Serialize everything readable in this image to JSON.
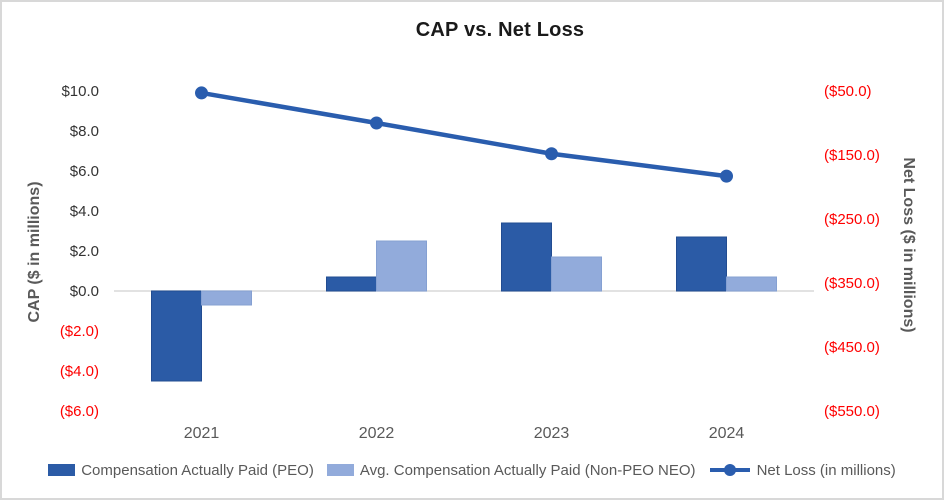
{
  "title": "CAP vs. Net Loss",
  "colors": {
    "peo_bar": "#2B5BA6",
    "peo_bar_edge": "#224C91",
    "neo_bar": "#92ABDB",
    "neo_bar_edge": "#85A0D2",
    "net_loss_line": "#2A5DAE",
    "negative_label": "#FF0000",
    "positive_label": "#333333",
    "axis_text": "#595959",
    "axis_line": "#D9D9D9",
    "title_text": "#1A1A1A"
  },
  "left_axis": {
    "title": "CAP ($ in millions)",
    "ticks": [
      {
        "value": 10,
        "label": "$10.0"
      },
      {
        "value": 8,
        "label": "$8.0"
      },
      {
        "value": 6,
        "label": "$6.0"
      },
      {
        "value": 4,
        "label": "$4.0"
      },
      {
        "value": 2,
        "label": "$2.0"
      },
      {
        "value": 0,
        "label": "$0.0"
      },
      {
        "value": -2,
        "label": "($2.0)"
      },
      {
        "value": -4,
        "label": "($4.0)"
      },
      {
        "value": -6,
        "label": "($6.0)"
      }
    ]
  },
  "right_axis": {
    "title": "Net Loss ($ in millions)",
    "ticks": [
      {
        "value": -50,
        "label": "($50.0)"
      },
      {
        "value": -150,
        "label": "($150.0)"
      },
      {
        "value": -250,
        "label": "($250.0)"
      },
      {
        "value": -350,
        "label": "($350.0)"
      },
      {
        "value": -450,
        "label": "($450.0)"
      },
      {
        "value": -550,
        "label": "($550.0)"
      }
    ]
  },
  "legend": [
    {
      "label": "Compensation Actually Paid (PEO)",
      "type": "swatch",
      "color_key": "peo_bar"
    },
    {
      "label": "Avg. Compensation Actually Paid (Non-PEO NEO)",
      "type": "swatch",
      "color_key": "neo_bar"
    },
    {
      "label": "Net Loss (in millions)",
      "type": "line-marker",
      "color_key": "net_loss_line"
    }
  ],
  "chart_data": {
    "type": "combo",
    "title": "CAP vs. Net Loss",
    "categories": [
      "2021",
      "2022",
      "2023",
      "2024"
    ],
    "series": [
      {
        "name": "Compensation Actually Paid (PEO)",
        "type": "bar",
        "axis": "left",
        "values": [
          -4.5,
          0.7,
          3.4,
          2.7
        ]
      },
      {
        "name": "Avg. Compensation Actually Paid (Non-PEO NEO)",
        "type": "bar",
        "axis": "left",
        "values": [
          -0.7,
          2.5,
          1.7,
          0.7
        ]
      },
      {
        "name": "Net Loss (in millions)",
        "type": "line",
        "axis": "right",
        "values": [
          -53,
          -100,
          -148,
          -183
        ]
      }
    ],
    "left_ylabel": "CAP ($ in millions)",
    "right_ylabel": "Net Loss ($ in millions)",
    "left_ylim": [
      -6,
      10
    ],
    "right_ylim": [
      -550,
      -50
    ],
    "left_tick_step": 2,
    "right_tick_step": 100,
    "grid": false,
    "legend_position": "bottom"
  }
}
